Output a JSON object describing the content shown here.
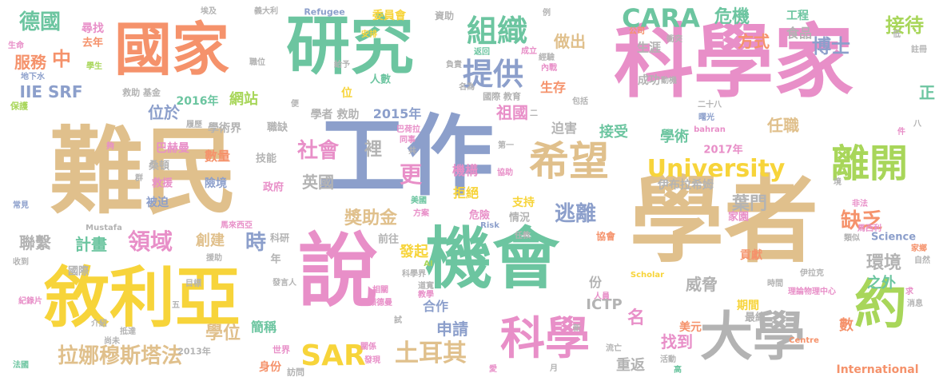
{
  "palette": {
    "tan": "#e0c08c",
    "pink": "#e88fc8",
    "green": "#6cc5a0",
    "orange": "#f5926b",
    "blue": "#8c9fcb",
    "lime": "#a8d65a",
    "yellow": "#f7d43a",
    "gray": "#b3b3b3"
  },
  "words": [
    {
      "text": "難民",
      "color": "tan"
    },
    {
      "text": "科學家",
      "color": "pink"
    },
    {
      "text": "學者",
      "color": "tan"
    },
    {
      "text": "工作",
      "color": "blue"
    },
    {
      "text": "研究",
      "color": "green"
    },
    {
      "text": "國家",
      "color": "orange"
    },
    {
      "text": "說",
      "color": "pink"
    },
    {
      "text": "機會",
      "color": "green"
    },
    {
      "text": "敘利亞",
      "color": "yellow"
    },
    {
      "text": "大學",
      "color": "gray"
    },
    {
      "text": "約",
      "color": "lime"
    },
    {
      "text": "科學",
      "color": "pink"
    },
    {
      "text": "希望",
      "color": "tan"
    },
    {
      "text": "離開",
      "color": "lime"
    },
    {
      "text": "University",
      "color": "yellow"
    },
    {
      "text": "CARA",
      "color": "green"
    },
    {
      "text": "組織",
      "color": "green"
    },
    {
      "text": "提供",
      "color": "blue"
    },
    {
      "text": "德國",
      "color": "green"
    },
    {
      "text": "中",
      "color": "orange"
    },
    {
      "text": "服務",
      "color": "orange"
    },
    {
      "text": "IIE SRF",
      "color": "blue"
    },
    {
      "text": "拉娜穆斯塔法",
      "color": "tan"
    },
    {
      "text": "SAR",
      "color": "yellow"
    },
    {
      "text": "土耳其",
      "color": "tan"
    },
    {
      "text": "領域",
      "color": "pink"
    },
    {
      "text": "時",
      "color": "blue"
    },
    {
      "text": "博士",
      "color": "blue"
    },
    {
      "text": "接待",
      "color": "lime"
    },
    {
      "text": "逃離",
      "color": "blue"
    },
    {
      "text": "葉門",
      "color": "gray"
    },
    {
      "text": "缺乏",
      "color": "orange"
    },
    {
      "text": "環境",
      "color": "gray"
    },
    {
      "text": "更",
      "color": "pink"
    },
    {
      "text": "社會",
      "color": "pink"
    },
    {
      "text": "獎助金",
      "color": "tan"
    },
    {
      "text": "學位",
      "color": "tan"
    },
    {
      "text": "危機",
      "color": "green"
    },
    {
      "text": "方式",
      "color": "orange"
    },
    {
      "text": "做出",
      "color": "tan"
    },
    {
      "text": "食品",
      "color": "gray"
    },
    {
      "text": "工程",
      "color": "green"
    },
    {
      "text": "生涯",
      "color": "gray"
    },
    {
      "text": "成功",
      "color": "gray"
    },
    {
      "text": "生存",
      "color": "orange"
    },
    {
      "text": "祖國",
      "color": "pink"
    },
    {
      "text": "接受",
      "color": "green"
    },
    {
      "text": "學術",
      "color": "green"
    },
    {
      "text": "任職",
      "color": "tan"
    },
    {
      "text": "迫害",
      "color": "gray"
    },
    {
      "text": "正",
      "color": "green"
    },
    {
      "text": "裡",
      "color": "gray"
    },
    {
      "text": "英國",
      "color": "gray"
    },
    {
      "text": "機構",
      "color": "pink"
    },
    {
      "text": "拒絕",
      "color": "yellow"
    },
    {
      "text": "支持",
      "color": "yellow"
    },
    {
      "text": "伊布拉希姆",
      "color": "gray"
    },
    {
      "text": "聯繫",
      "color": "gray"
    },
    {
      "text": "計畫",
      "color": "green"
    },
    {
      "text": "創建",
      "color": "tan"
    },
    {
      "text": "發起",
      "color": "yellow"
    },
    {
      "text": "申請",
      "color": "blue"
    },
    {
      "text": "名",
      "color": "pink"
    },
    {
      "text": "找到",
      "color": "pink"
    },
    {
      "text": "威脅",
      "color": "gray"
    },
    {
      "text": "重返",
      "color": "gray"
    },
    {
      "text": "期間",
      "color": "yellow"
    },
    {
      "text": "之外",
      "color": "green"
    },
    {
      "text": "數",
      "color": "orange"
    },
    {
      "text": "ICTP",
      "color": "gray"
    },
    {
      "text": "美元",
      "color": "orange"
    },
    {
      "text": "合作",
      "color": "blue"
    },
    {
      "text": "份",
      "color": "gray"
    },
    {
      "text": "簡稱",
      "color": "green"
    },
    {
      "text": "身份",
      "color": "orange"
    },
    {
      "text": "位於",
      "color": "blue"
    },
    {
      "text": "網站",
      "color": "lime"
    },
    {
      "text": "2016年",
      "color": "green"
    },
    {
      "text": "學者 救助",
      "color": "gray"
    },
    {
      "text": "2015年",
      "color": "blue"
    },
    {
      "text": "數量",
      "color": "orange"
    },
    {
      "text": "巴赫曼",
      "color": "pink"
    },
    {
      "text": "桑頓",
      "color": "gray"
    },
    {
      "text": "救援",
      "color": "pink"
    },
    {
      "text": "被迫",
      "color": "blue"
    },
    {
      "text": "險境",
      "color": "blue"
    },
    {
      "text": "技能",
      "color": "gray"
    },
    {
      "text": "政府",
      "color": "pink"
    },
    {
      "text": "職缺",
      "color": "gray"
    },
    {
      "text": "學術界",
      "color": "gray"
    },
    {
      "text": "2017年",
      "color": "pink"
    },
    {
      "text": "貢獻",
      "color": "orange"
    },
    {
      "text": "最終",
      "color": "gray"
    },
    {
      "text": "家園",
      "color": "pink"
    },
    {
      "text": "Science",
      "color": "blue"
    },
    {
      "text": "International",
      "color": "orange"
    },
    {
      "text": "尋找",
      "color": "pink"
    },
    {
      "text": "去年",
      "color": "orange"
    },
    {
      "text": "委員會",
      "color": "yellow"
    },
    {
      "text": "資助",
      "color": "gray"
    },
    {
      "text": "人數",
      "color": "green"
    },
    {
      "text": "國際 教育",
      "color": "gray"
    },
    {
      "text": "位",
      "color": "yellow"
    },
    {
      "text": "前往",
      "color": "gray"
    },
    {
      "text": "危險",
      "color": "pink"
    },
    {
      "text": "情況",
      "color": "gray"
    },
    {
      "text": "科研",
      "color": "gray"
    },
    {
      "text": "年",
      "color": "gray"
    },
    {
      "text": "國際",
      "color": "gray"
    },
    {
      "text": "世界",
      "color": "pink"
    },
    {
      "text": "2013年",
      "color": "gray"
    },
    {
      "text": "訪問",
      "color": "gray"
    },
    {
      "text": "救助 基金",
      "color": "gray"
    },
    {
      "text": "保護",
      "color": "lime"
    },
    {
      "text": "履歷",
      "color": "gray"
    },
    {
      "text": "Refugee",
      "color": "blue"
    },
    {
      "text": "義大利",
      "color": "gray"
    },
    {
      "text": "埃及",
      "color": "gray"
    },
    {
      "text": "地下水",
      "color": "blue"
    },
    {
      "text": "學生",
      "color": "lime"
    },
    {
      "text": "職位",
      "color": "gray"
    },
    {
      "text": "給予",
      "color": "gray"
    },
    {
      "text": "安排",
      "color": "yellow"
    },
    {
      "text": "返回",
      "color": "green"
    },
    {
      "text": "負責",
      "color": "gray"
    },
    {
      "text": "成立",
      "color": "pink"
    },
    {
      "text": "經驗",
      "color": "gray"
    },
    {
      "text": "公司",
      "color": "orange"
    },
    {
      "text": "衝突",
      "color": "gray"
    },
    {
      "text": "低",
      "color": "gray"
    },
    {
      "text": "註冊",
      "color": "gray"
    },
    {
      "text": "動機",
      "color": "gray"
    },
    {
      "text": "包括",
      "color": "gray"
    },
    {
      "text": "二十八",
      "color": "gray"
    },
    {
      "text": "曙光",
      "color": "blue"
    },
    {
      "text": "例",
      "color": "gray"
    },
    {
      "text": "二",
      "color": "gray"
    },
    {
      "text": "巴荷拉",
      "color": "pink"
    },
    {
      "text": "同事",
      "color": "pink"
    },
    {
      "text": "第一",
      "color": "gray"
    },
    {
      "text": "協助",
      "color": "pink"
    },
    {
      "text": "共",
      "color": "gray"
    },
    {
      "text": "bahran",
      "color": "pink"
    },
    {
      "text": "八",
      "color": "gray"
    },
    {
      "text": "件",
      "color": "pink"
    },
    {
      "text": "美國",
      "color": "green"
    },
    {
      "text": "方案",
      "color": "pink"
    },
    {
      "text": "Risk",
      "color": "blue"
    },
    {
      "text": "任教",
      "color": "gray"
    },
    {
      "text": "協會",
      "color": "orange"
    },
    {
      "text": "非法",
      "color": "pink"
    },
    {
      "text": "馬西利",
      "color": "pink"
    },
    {
      "text": "類似",
      "color": "gray"
    },
    {
      "text": "家鄉",
      "color": "orange"
    },
    {
      "text": "自然",
      "color": "gray"
    },
    {
      "text": "伊拉克",
      "color": "gray"
    },
    {
      "text": "理論物理中心",
      "color": "pink"
    },
    {
      "text": "時間",
      "color": "gray"
    },
    {
      "text": "求",
      "color": "pink"
    },
    {
      "text": "消息",
      "color": "gray"
    },
    {
      "text": "Scholar",
      "color": "yellow"
    },
    {
      "text": "Centre",
      "color": "orange"
    },
    {
      "text": "流亡",
      "color": "gray"
    },
    {
      "text": "活動",
      "color": "gray"
    },
    {
      "text": "高",
      "color": "green"
    },
    {
      "text": "新",
      "color": "gray"
    },
    {
      "text": "月",
      "color": "gray"
    },
    {
      "text": "愛",
      "color": "pink"
    },
    {
      "text": "關係",
      "color": "pink"
    },
    {
      "text": "發現",
      "color": "pink"
    },
    {
      "text": "試",
      "color": "gray"
    },
    {
      "text": "相關",
      "color": "pink"
    },
    {
      "text": "顧德曼",
      "color": "pink"
    },
    {
      "text": "科學界",
      "color": "gray"
    },
    {
      "text": "AI",
      "color": "lime"
    },
    {
      "text": "道寬",
      "color": "gray"
    },
    {
      "text": "教學",
      "color": "pink"
    },
    {
      "text": "名為",
      "color": "gray"
    },
    {
      "text": "內戰",
      "color": "pink"
    },
    {
      "text": "馬來西亞",
      "color": "pink"
    },
    {
      "text": "Mustafa",
      "color": "gray"
    },
    {
      "text": "常見",
      "color": "blue"
    },
    {
      "text": "群",
      "color": "gray"
    },
    {
      "text": "夠",
      "color": "pink"
    },
    {
      "text": "收到",
      "color": "gray"
    },
    {
      "text": "援助",
      "color": "gray"
    },
    {
      "text": "目標",
      "color": "gray"
    },
    {
      "text": "發言人",
      "color": "gray"
    },
    {
      "text": "紀錄片",
      "color": "pink"
    },
    {
      "text": "五",
      "color": "gray"
    },
    {
      "text": "介紹",
      "color": "gray"
    },
    {
      "text": "抵達",
      "color": "gray"
    },
    {
      "text": "尚未",
      "color": "gray"
    },
    {
      "text": "法國",
      "color": "green"
    },
    {
      "text": "人員",
      "color": "pink"
    },
    {
      "text": "生命",
      "color": "pink"
    },
    {
      "text": "便",
      "color": "gray"
    },
    {
      "text": "境",
      "color": "gray"
    }
  ]
}
